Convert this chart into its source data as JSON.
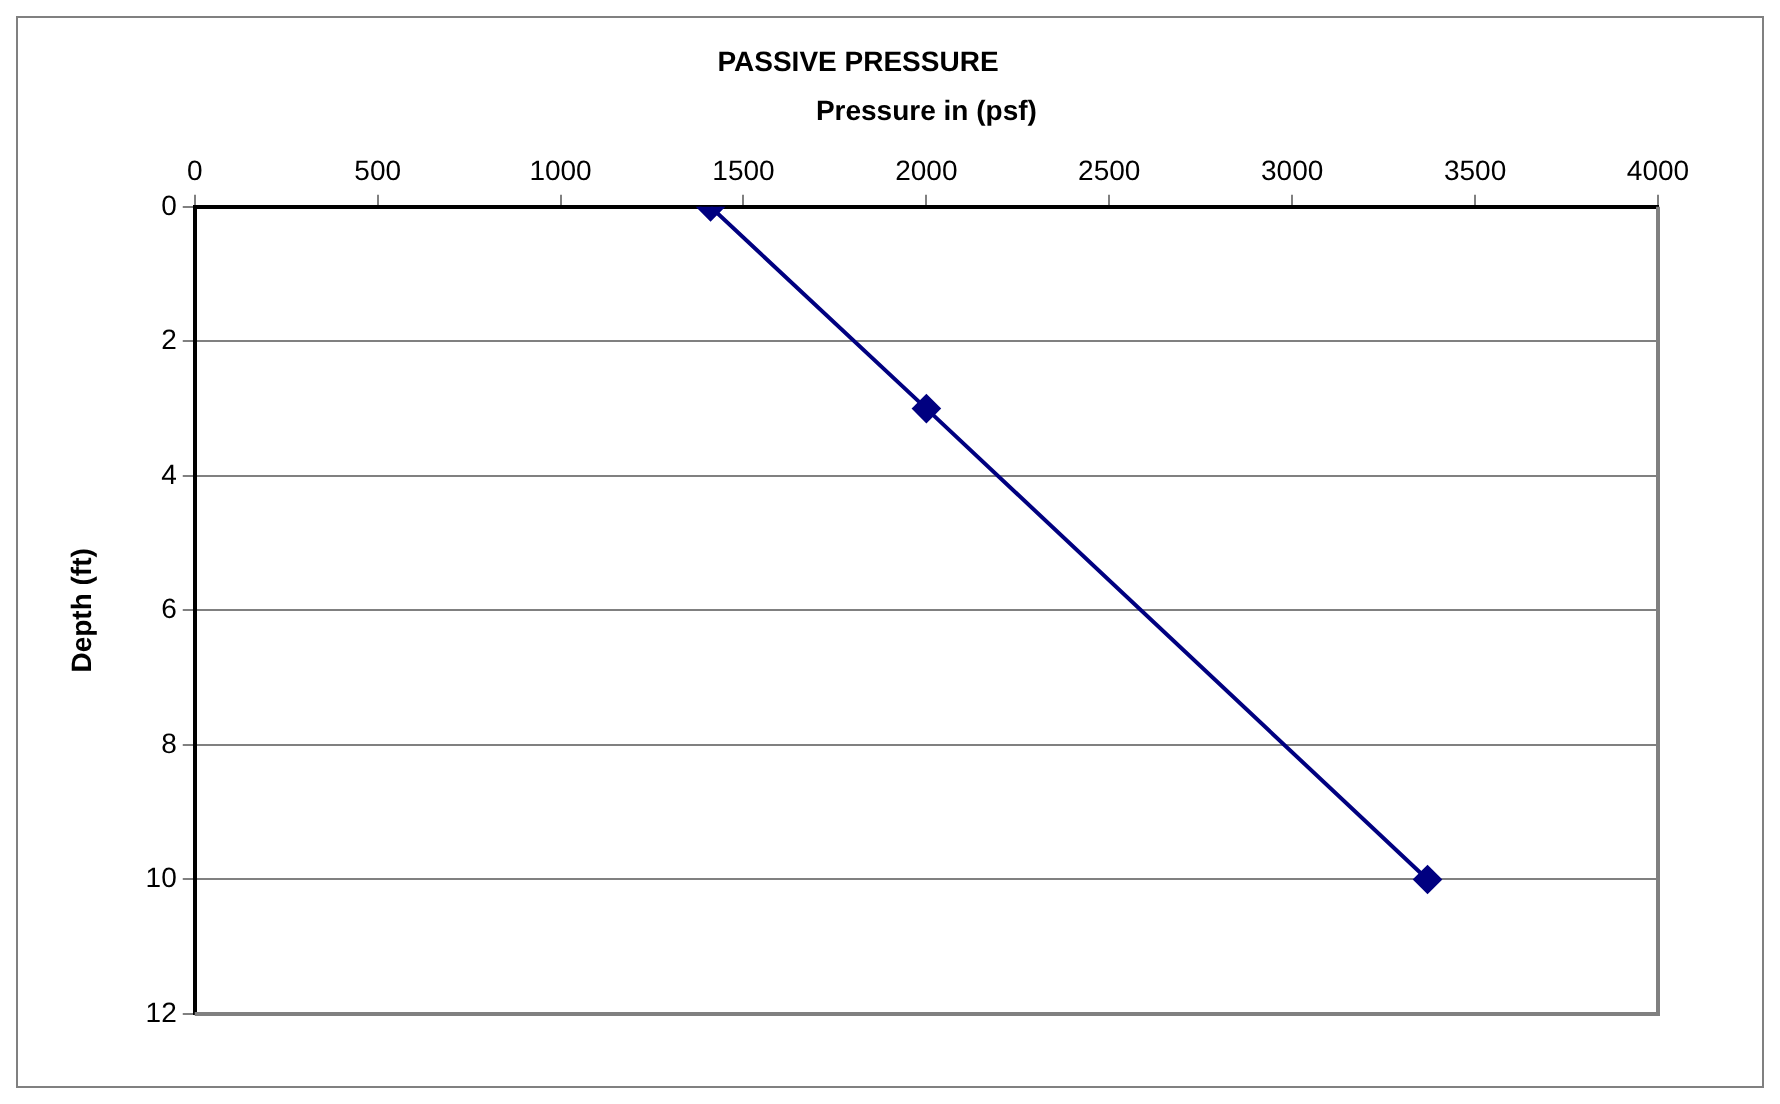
{
  "chart_data": {
    "type": "line",
    "title": "PASSIVE PRESSURE",
    "xlabel": "Pressure in (psf)",
    "ylabel": "Depth (ft)",
    "series": [
      {
        "color": "#000080",
        "x": [
          1410,
          2000,
          3370
        ],
        "values": [
          0,
          3,
          10
        ]
      }
    ],
    "xlim": [
      0,
      4000
    ],
    "xticks": [
      0,
      500,
      1000,
      1500,
      2000,
      2500,
      3000,
      3500,
      4000
    ],
    "ylim": [
      12,
      0
    ],
    "yticks": [
      0,
      2,
      4,
      6,
      8,
      10,
      12
    ],
    "grid": "y",
    "legend": false,
    "marker": "diamond",
    "line_style": "solid"
  }
}
